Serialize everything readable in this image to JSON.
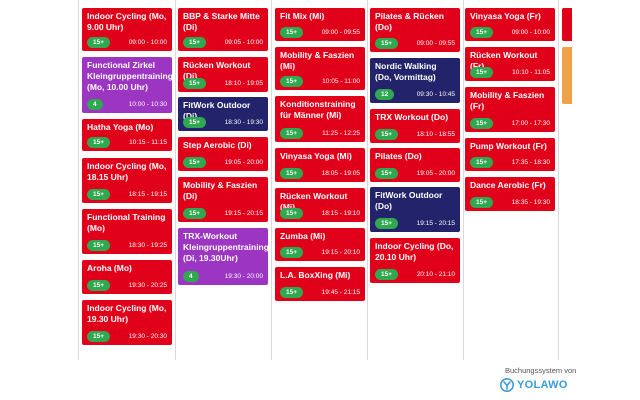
{
  "columns": [
    {
      "cards": [
        {
          "title": "Indoor Cycling (Mo, 9.00 Uhr)",
          "badge": "15+",
          "time": "09:00 - 10:00",
          "color": "red"
        },
        {
          "title": "Functional Zirkel Kleingruppentraining (Mo, 10.00 Uhr)",
          "badge": "4",
          "time": "10:00 - 10:30",
          "color": "purple"
        },
        {
          "title": "Hatha Yoga (Mo)",
          "badge": "15+",
          "time": "10:15 - 11:15",
          "color": "red"
        },
        {
          "title": "Indoor Cycling (Mo, 18.15 Uhr)",
          "badge": "15+",
          "time": "18:15 - 19:15",
          "color": "red"
        },
        {
          "title": "Functional Training (Mo)",
          "badge": "15+",
          "time": "18:30 - 19:25",
          "color": "red"
        },
        {
          "title": "Aroha (Mo)",
          "badge": "15+",
          "time": "19:30 - 20:25",
          "color": "red"
        },
        {
          "title": "Indoor Cycling (Mo, 19.30 Uhr)",
          "badge": "15+",
          "time": "19:30 - 20:30",
          "color": "red"
        }
      ]
    },
    {
      "cards": [
        {
          "title": "BBP & Starke Mitte (Di)",
          "badge": "15+",
          "time": "09:05 - 10:00",
          "color": "red"
        },
        {
          "title": "Rücken Workout (Di)",
          "badge": "15+",
          "time": "18:10 - 19:05",
          "color": "red"
        },
        {
          "title": "FitWork Outdoor (Di)",
          "badge": "15+",
          "time": "18:30 - 19:30",
          "color": "navy"
        },
        {
          "title": "Step Aerobic (Di)",
          "badge": "15+",
          "time": "19:05 - 20:00",
          "color": "red"
        },
        {
          "title": "Mobility & Faszien (Di)",
          "badge": "15+",
          "time": "19:15 - 20:15",
          "color": "red"
        },
        {
          "title": "TRX-Workout Kleingruppentraining (Di, 19.30Uhr)",
          "badge": "4",
          "time": "19:30 - 20:00",
          "color": "purple"
        }
      ]
    },
    {
      "cards": [
        {
          "title": "Fit Mix (Mi)",
          "badge": "15+",
          "time": "09:00 - 09:55",
          "color": "red"
        },
        {
          "title": "Mobility & Faszien (Mi)",
          "badge": "15+",
          "time": "10:05 - 11:00",
          "color": "red"
        },
        {
          "title": "Konditionstraining für Männer (Mi)",
          "badge": "15+",
          "time": "11:25 - 12:25",
          "color": "red"
        },
        {
          "title": "Vinyasa Yoga (Mi)",
          "badge": "15+",
          "time": "18:05 - 19:05",
          "color": "red"
        },
        {
          "title": "Rücken Workout (Mi)",
          "badge": "15+",
          "time": "18:15 - 19:10",
          "color": "red"
        },
        {
          "title": "Zumba (Mi)",
          "badge": "15+",
          "time": "19:15 - 20:10",
          "color": "red"
        },
        {
          "title": "L.A. BoxXing (Mi)",
          "badge": "15+",
          "time": "19:45 - 21:15",
          "color": "red"
        }
      ]
    },
    {
      "cards": [
        {
          "title": "Pilates & Rücken (Do)",
          "badge": "15+",
          "time": "09:00 - 09:55",
          "color": "red"
        },
        {
          "title": "Nordic Walking (Do, Vormittag)",
          "badge": "12",
          "time": "09:30 - 10:45",
          "color": "navy"
        },
        {
          "title": "TRX Workout (Do)",
          "badge": "15+",
          "time": "18:10 - 18:55",
          "color": "red"
        },
        {
          "title": "Pilates (Do)",
          "badge": "15+",
          "time": "19:05 - 20:00",
          "color": "red"
        },
        {
          "title": "FitWork Outdoor (Do)",
          "badge": "15+",
          "time": "19:15 - 20:15",
          "color": "navy"
        },
        {
          "title": "Indoor Cycling (Do, 20.10 Uhr)",
          "badge": "15+",
          "time": "20:10 - 21:10",
          "color": "red"
        }
      ]
    },
    {
      "cards": [
        {
          "title": "Vinyasa Yoga (Fr)",
          "badge": "15+",
          "time": "09:00 - 10:00",
          "color": "red"
        },
        {
          "title": "Rücken Workout (Fr)",
          "badge": "15+",
          "time": "10:10 - 11:05",
          "color": "red"
        },
        {
          "title": "Mobility & Faszien (Fr)",
          "badge": "15+",
          "time": "17:00 - 17:30",
          "color": "red"
        },
        {
          "title": "Pump Workout (Fr)",
          "badge": "15+",
          "time": "17:35 - 18:30",
          "color": "red"
        },
        {
          "title": "Dance Aerobic (Fr)",
          "badge": "15+",
          "time": "18:35 - 19:30",
          "color": "red"
        }
      ]
    }
  ],
  "footer": {
    "powered_by": "Buchungssystem von",
    "brand": "YOLAWO"
  },
  "colors": {
    "red": "#e1001a",
    "navy": "#23236b",
    "purple": "#9b35c2",
    "badge": "#2fa84f",
    "orange": "#f0a24a"
  }
}
